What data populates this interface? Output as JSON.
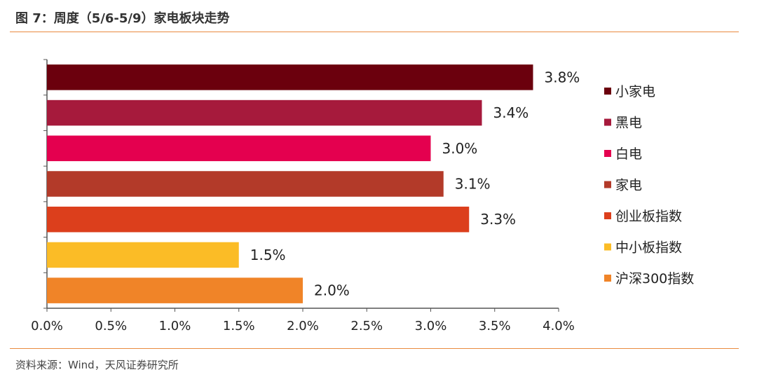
{
  "header": {
    "title": "图 7：周度（5/6-5/9）家电板块走势"
  },
  "footer": {
    "source": "资料来源：Wind，天风证券研究所"
  },
  "chart_data": {
    "type": "bar",
    "orientation": "horizontal",
    "categories": [
      "小家电",
      "黑电",
      "白电",
      "家电",
      "创业板指数",
      "中小板指数",
      "沪深300指数"
    ],
    "values": [
      3.8,
      3.4,
      3.0,
      3.1,
      3.3,
      1.5,
      2.0
    ],
    "data_labels": [
      "3.8%",
      "3.4%",
      "3.0%",
      "3.1%",
      "3.3%",
      "1.5%",
      "2.0%"
    ],
    "colors": [
      "#6b000d",
      "#a61a3c",
      "#e4004f",
      "#b33a29",
      "#dc3f1c",
      "#fbbc26",
      "#f08428"
    ],
    "xlim": [
      0,
      4.0
    ],
    "x_ticks": [
      0,
      0.5,
      1.0,
      1.5,
      2.0,
      2.5,
      3.0,
      3.5,
      4.0
    ],
    "x_tick_labels": [
      "0.0%",
      "0.5%",
      "1.0%",
      "1.5%",
      "2.0%",
      "2.5%",
      "3.0%",
      "3.5%",
      "4.0%"
    ],
    "legend": {
      "position": "right",
      "entries": [
        "小家电",
        "黑电",
        "白电",
        "家电",
        "创业板指数",
        "中小板指数",
        "沪深300指数"
      ]
    },
    "grid": false,
    "title": "",
    "xlabel": "",
    "ylabel": ""
  }
}
